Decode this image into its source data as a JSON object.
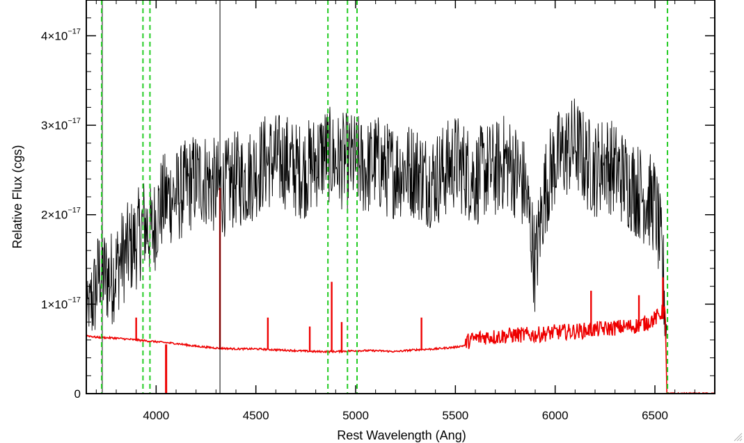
{
  "chart_data": {
    "type": "line",
    "title": "",
    "xlabel": "Rest Wavelength (Ang)",
    "ylabel": "Relative Flux (cgs)",
    "xlim": [
      3650,
      6800
    ],
    "ylim": [
      0,
      4.4
    ],
    "y_scale_note": "x10^-17",
    "x_ticks": [
      {
        "value": 4000,
        "label": "4000"
      },
      {
        "value": 4500,
        "label": "4500"
      },
      {
        "value": 5000,
        "label": "5000"
      },
      {
        "value": 5500,
        "label": "5500"
      },
      {
        "value": 6000,
        "label": "6000"
      },
      {
        "value": 6500,
        "label": "6500"
      }
    ],
    "y_ticks": [
      {
        "value": 0,
        "mantissa": "0",
        "exponent": ""
      },
      {
        "value": 1,
        "mantissa": "1×10",
        "exponent": "−17"
      },
      {
        "value": 2,
        "mantissa": "2×10",
        "exponent": "−17"
      },
      {
        "value": 3,
        "mantissa": "3×10",
        "exponent": "−17"
      },
      {
        "value": 4,
        "mantissa": "4×10",
        "exponent": "−17"
      }
    ],
    "series": [
      {
        "color": "#000000",
        "x": [
          3650,
          3690,
          3720,
          3750,
          3780,
          3820,
          3860,
          3900,
          3940,
          3980,
          4020,
          4060,
          4100,
          4150,
          4200,
          4250,
          4300,
          4350,
          4400,
          4450,
          4500,
          4550,
          4600,
          4650,
          4700,
          4750,
          4800,
          4850,
          4900,
          4950,
          5000,
          5050,
          5100,
          5150,
          5200,
          5250,
          5300,
          5350,
          5400,
          5450,
          5500,
          5550,
          5600,
          5650,
          5700,
          5750,
          5800,
          5850,
          5880,
          5900,
          5920,
          5950,
          6000,
          6050,
          6100,
          6150,
          6200,
          6250,
          6300,
          6350,
          6400,
          6450,
          6500,
          6520,
          6540,
          6560
        ],
        "y": [
          0.9,
          1.1,
          1.4,
          1.3,
          1.3,
          1.5,
          1.6,
          1.7,
          1.9,
          1.8,
          2.1,
          2.2,
          2.2,
          2.3,
          2.4,
          2.4,
          2.3,
          2.3,
          2.4,
          2.4,
          2.5,
          2.6,
          2.6,
          2.6,
          2.5,
          2.5,
          2.6,
          2.7,
          2.6,
          2.6,
          2.6,
          2.5,
          2.6,
          2.5,
          2.5,
          2.5,
          2.5,
          2.4,
          2.4,
          2.5,
          2.6,
          2.5,
          2.4,
          2.5,
          2.5,
          2.6,
          2.5,
          2.3,
          1.8,
          1.4,
          1.8,
          2.3,
          2.6,
          2.7,
          2.8,
          2.6,
          2.5,
          2.6,
          2.5,
          2.4,
          2.3,
          2.2,
          2.1,
          1.8,
          1.4,
          0.6
        ]
      },
      {
        "color": "#ee0000",
        "x": [
          3650,
          3700,
          3800,
          3900,
          4000,
          4100,
          4200,
          4300,
          4400,
          4500,
          4600,
          4700,
          4800,
          4900,
          5000,
          5100,
          5200,
          5300,
          5400,
          5500,
          5550,
          5600,
          5650,
          5700,
          5800,
          5900,
          6000,
          6100,
          6200,
          6300,
          6400,
          6450,
          6500,
          6550,
          6560,
          6800
        ],
        "y": [
          0.65,
          0.63,
          0.62,
          0.6,
          0.58,
          0.56,
          0.53,
          0.51,
          0.5,
          0.5,
          0.49,
          0.48,
          0.47,
          0.47,
          0.48,
          0.48,
          0.47,
          0.49,
          0.5,
          0.52,
          0.54,
          0.58,
          0.6,
          0.6,
          0.62,
          0.62,
          0.65,
          0.66,
          0.68,
          0.7,
          0.72,
          0.75,
          0.8,
          0.9,
          0.0,
          0.0
        ]
      }
    ],
    "spikes_red": [
      {
        "x": 3900,
        "y": 0.85
      },
      {
        "x": 4320,
        "y": 2.3
      },
      {
        "x": 4560,
        "y": 0.85
      },
      {
        "x": 4770,
        "y": 0.75
      },
      {
        "x": 4880,
        "y": 1.25
      },
      {
        "x": 4930,
        "y": 0.8
      },
      {
        "x": 5330,
        "y": 0.85
      },
      {
        "x": 6180,
        "y": 1.15
      },
      {
        "x": 6420,
        "y": 1.1
      },
      {
        "x": 6540,
        "y": 1.3
      }
    ],
    "vlines_black": [
      3730,
      4320
    ],
    "vlines_green_dashed": [
      3727,
      3934,
      3969,
      4861,
      4959,
      5007,
      6563
    ],
    "axis_colors": {
      "frame": "#000000",
      "green_lines": "#22cc22"
    }
  }
}
